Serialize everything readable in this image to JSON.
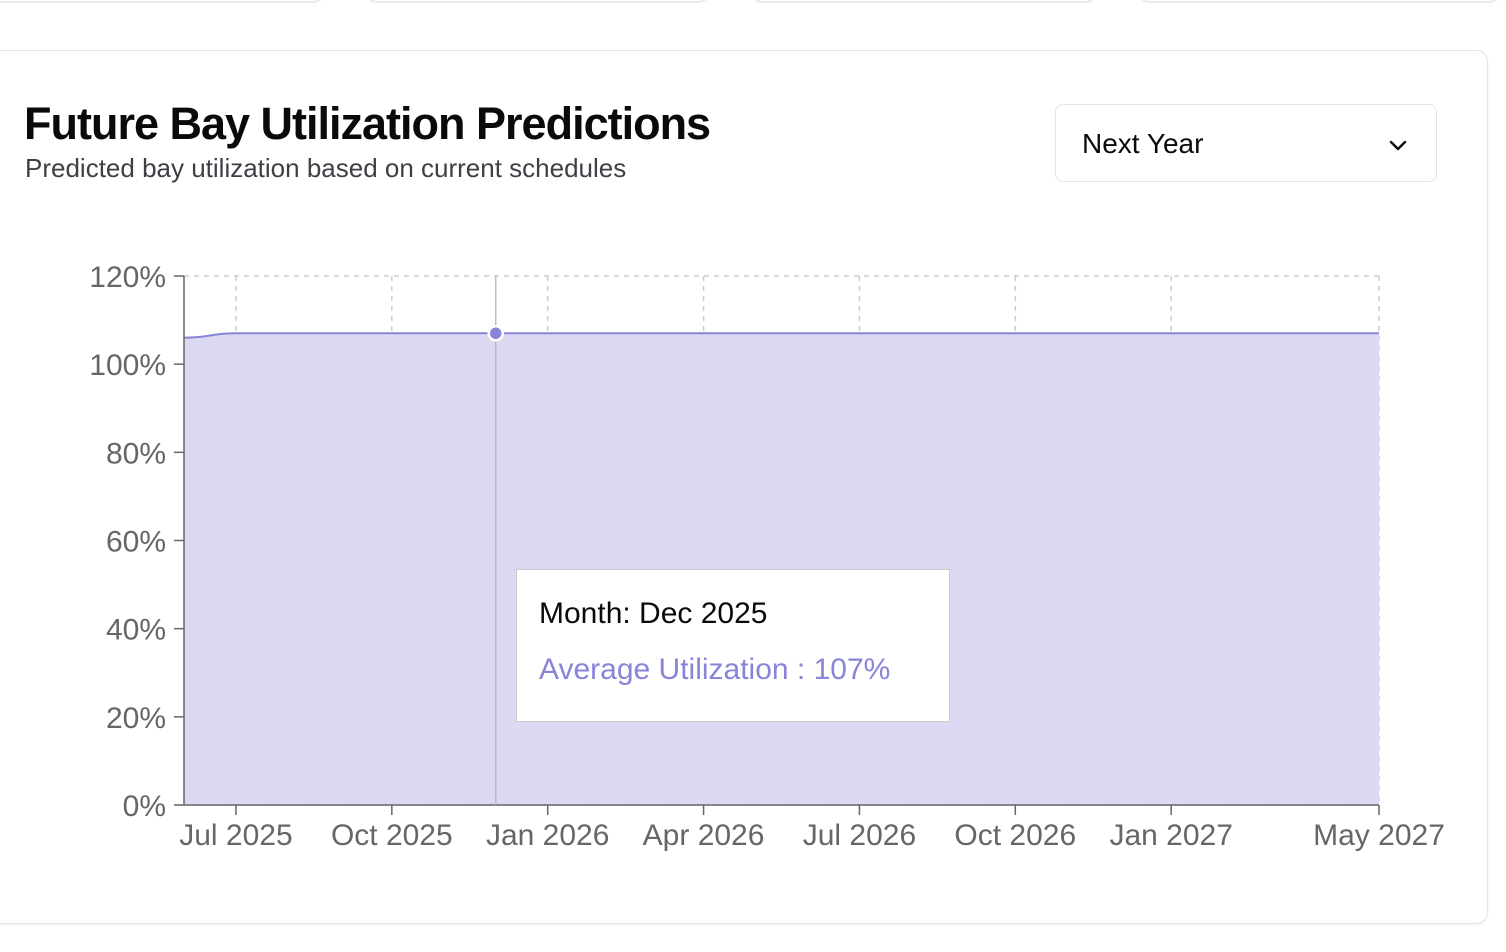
{
  "header": {
    "title": "Future Bay Utilization Predictions",
    "subtitle": "Predicted bay utilization based on current schedules"
  },
  "range_select": {
    "value": "Next Year",
    "icon": "chevron-down-icon"
  },
  "tooltip": {
    "label": "Month: Dec 2025",
    "value_text": "Average Utilization : 107%"
  },
  "colors": {
    "series": "#8884d8",
    "fill": "#dcd9f2",
    "grid": "#cccccc",
    "axis": "#666666"
  },
  "chart_data": {
    "type": "area",
    "x": [
      "Jun 2025",
      "Jul 2025",
      "Aug 2025",
      "Sep 2025",
      "Oct 2025",
      "Nov 2025",
      "Dec 2025",
      "Jan 2026",
      "Feb 2026",
      "Mar 2026",
      "Apr 2026",
      "May 2026",
      "Jun 2026",
      "Jul 2026",
      "Aug 2026",
      "Sep 2026",
      "Oct 2026",
      "Nov 2026",
      "Dec 2026",
      "Jan 2027",
      "Feb 2027",
      "Mar 2027",
      "Apr 2027",
      "May 2027"
    ],
    "series": [
      {
        "values": [
          106,
          107,
          107,
          107,
          107,
          107,
          107,
          107,
          107,
          107,
          107,
          107,
          107,
          107,
          107,
          107,
          107,
          107,
          107,
          107,
          107,
          107,
          107,
          107
        ]
      }
    ],
    "xticks": [
      "Jul 2025",
      "Oct 2025",
      "Jan 2026",
      "Apr 2026",
      "Jul 2026",
      "Oct 2026",
      "Jan 2027",
      "May 2027"
    ],
    "yticks": [
      "0%",
      "20%",
      "40%",
      "60%",
      "80%",
      "100%",
      "120%"
    ],
    "ylim": [
      0,
      120
    ],
    "grid": true,
    "active_point": "Dec 2025"
  }
}
